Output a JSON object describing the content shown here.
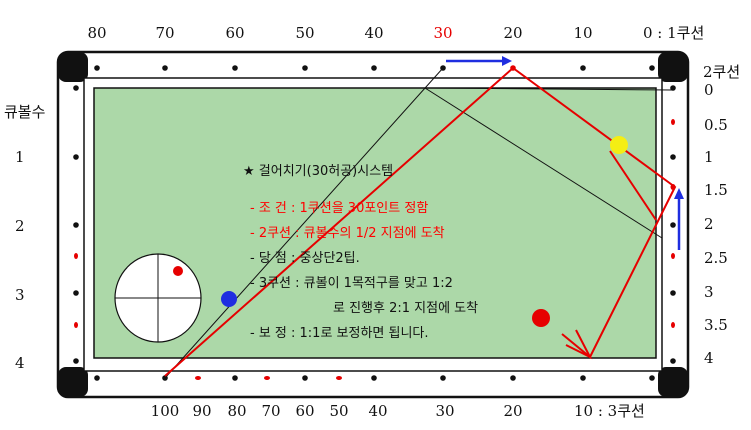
{
  "colors": {
    "table_green": "#acd8a8",
    "rail_black": "#111111",
    "red": "#e60000",
    "blue": "#1f2ee0",
    "yellow": "#f4ee14",
    "red_text": "#ff0000"
  },
  "top_labels": [
    "80",
    "70",
    "60",
    "50",
    "40",
    "30",
    "20",
    "10",
    "0 : 1쿠션"
  ],
  "top_highlight_label": "30",
  "right_labels": [
    "2쿠션",
    "0",
    "0.5",
    "1",
    "1.5",
    "2",
    "2.5",
    "3",
    "3.5",
    "4"
  ],
  "left_title": "큐볼수",
  "left_labels": [
    "1",
    "2",
    "3",
    "4"
  ],
  "bottom_labels": [
    "100",
    "90",
    "80",
    "70",
    "60",
    "50",
    "40",
    "30",
    "20",
    "10 : 3쿠션"
  ],
  "notes": {
    "title": "★ 걸어치기(30허공)시스템",
    "line1": "- 조 건 : 1쿠션을 30포인트 정함",
    "line2": "- 2쿠션 : 큐볼수의 1/2 지점에 도착",
    "line3": "- 당 점 : 중상단2팁.",
    "line4": "- 3쿠션 : 큐볼이 1목적구를 맞고 1:2",
    "line5": "로 진행후 2:1 지점에 도착",
    "line6": "- 보 정 : 1:1로 보정하면 됩니다."
  }
}
